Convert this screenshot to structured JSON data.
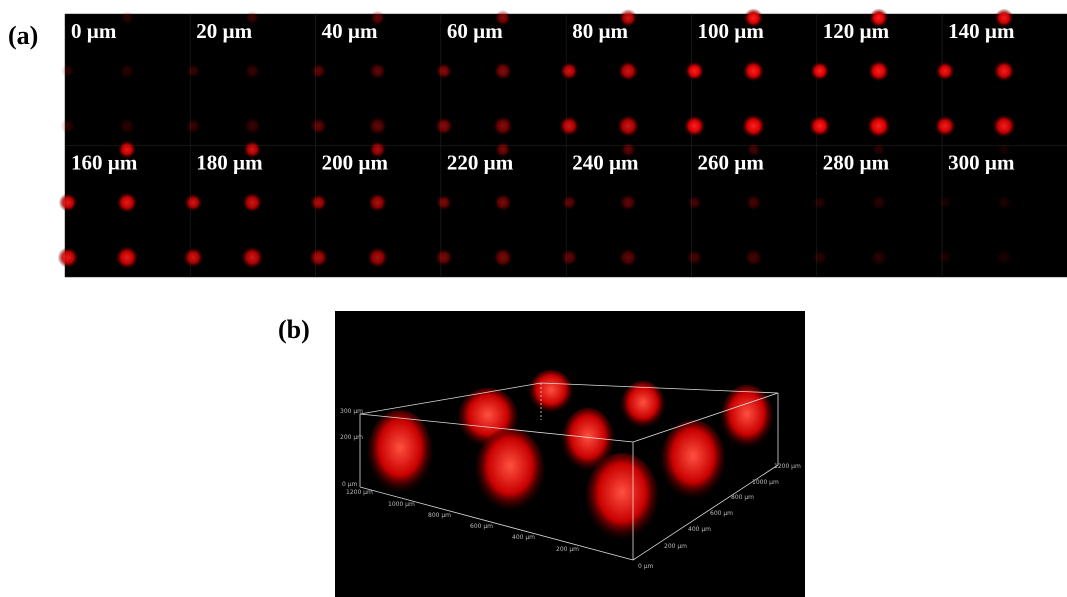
{
  "panel_a": {
    "label": "(a)",
    "depths": [
      "0 µm",
      "20 µm",
      "40 µm",
      "60 µm",
      "80 µm",
      "100 µm",
      "120 µm",
      "140 µm",
      "160 µm",
      "180 µm",
      "200 µm",
      "220 µm",
      "240 µm",
      "260 µm",
      "280 µm",
      "300 µm"
    ]
  },
  "panel_b": {
    "label": "(b)",
    "z_axis": [
      "300 µm",
      "200 µm",
      "0 µm"
    ],
    "x_axis": [
      "1200 µm",
      "1000 µm",
      "800 µm",
      "600 µm",
      "400 µm",
      "200 µm"
    ],
    "y_axis": [
      "0 µm",
      "200 µm",
      "400 µm",
      "600 µm",
      "800 µm",
      "1000 µm",
      "1200 µm"
    ]
  }
}
